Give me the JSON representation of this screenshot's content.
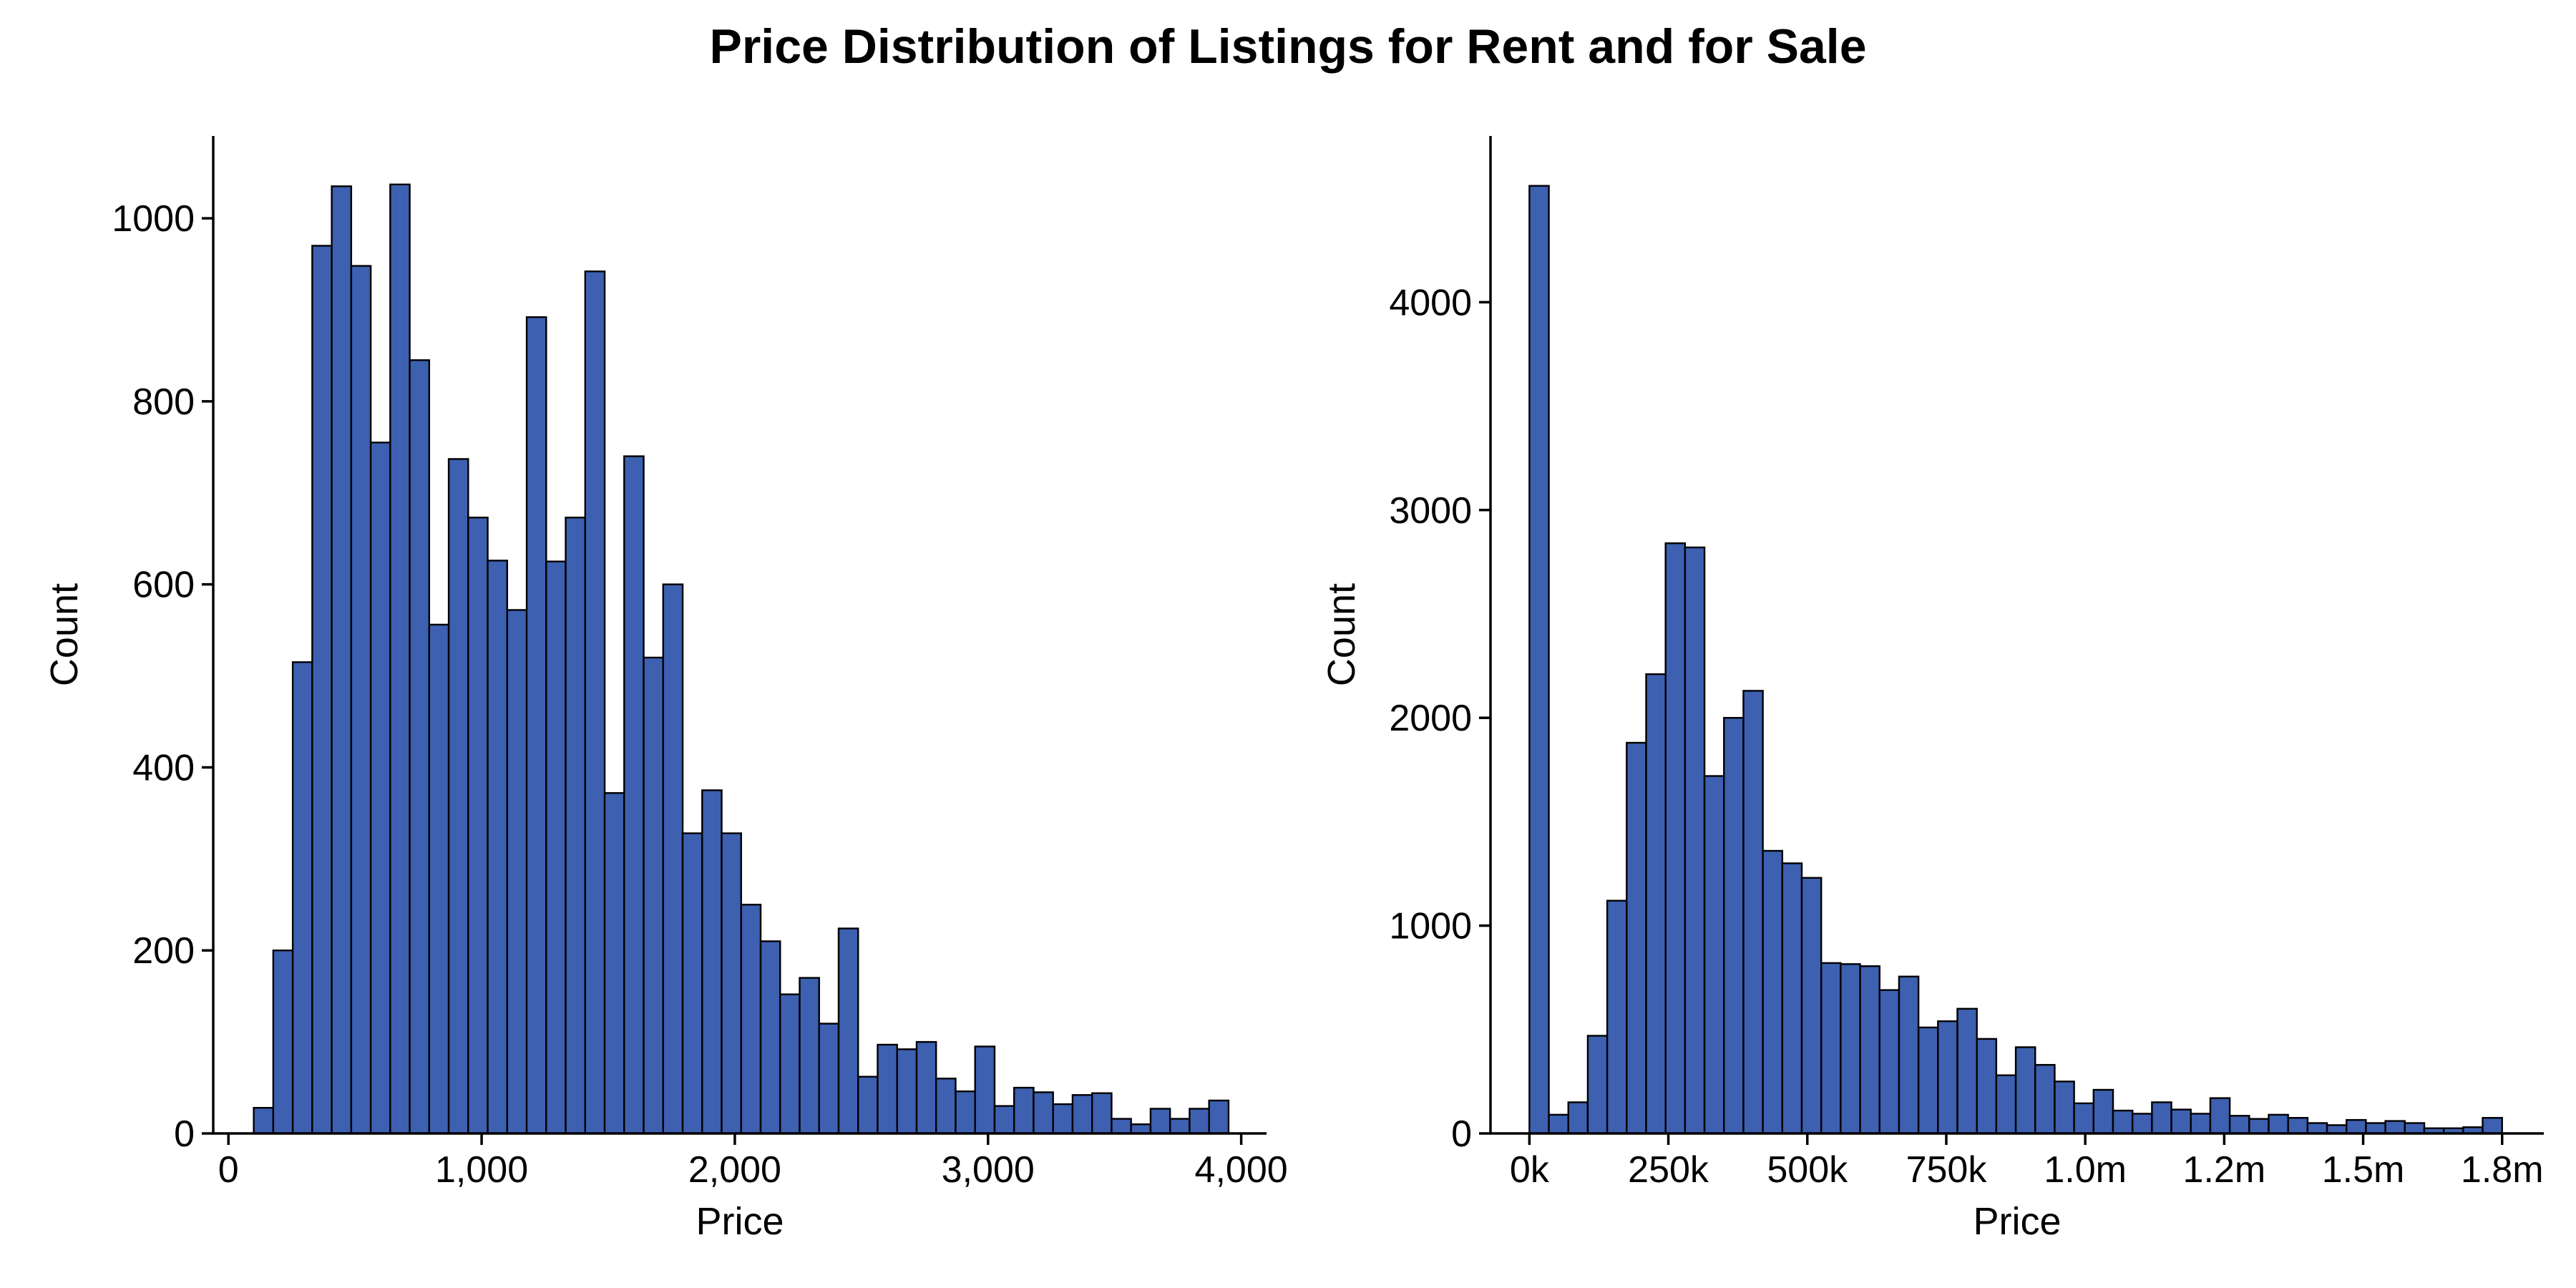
{
  "figure": {
    "title": "Price Distribution of Listings for Rent and for Sale",
    "bar_color": "#3d60b0",
    "edge_color": "#000000"
  },
  "chart_data": [
    {
      "type": "bar",
      "subtype": "histogram",
      "title": "",
      "xlabel": "Price",
      "ylabel": "Count",
      "xlim": [
        -60,
        4100
      ],
      "ylim": [
        0,
        1090
      ],
      "x_ticks": [
        0,
        1000,
        2000,
        3000,
        4000
      ],
      "x_tick_labels": [
        "0",
        "1,000",
        "2,000",
        "3,000",
        "4,000"
      ],
      "y_ticks": [
        0,
        200,
        400,
        600,
        800,
        1000
      ],
      "y_tick_labels": [
        "0",
        "200",
        "400",
        "600",
        "800",
        "1000"
      ],
      "bin_start": 100,
      "bin_width": 77,
      "values": [
        28,
        200,
        515,
        970,
        1035,
        948,
        755,
        1037,
        845,
        556,
        737,
        673,
        626,
        572,
        892,
        625,
        673,
        942,
        372,
        740,
        520,
        600,
        328,
        375,
        328,
        250,
        210,
        152,
        170,
        120,
        224,
        62,
        97,
        92,
        100,
        60,
        46,
        95,
        30,
        50,
        45,
        32,
        42,
        44,
        16,
        10,
        27,
        16,
        27,
        36
      ],
      "grid": false,
      "legend": "none"
    },
    {
      "type": "bar",
      "subtype": "histogram",
      "title": "",
      "xlabel": "Price",
      "ylabel": "Count",
      "xlim": [
        -70000,
        1825000
      ],
      "ylim": [
        0,
        4800
      ],
      "x_ticks": [
        0,
        250000,
        500000,
        750000,
        1000000,
        1250000,
        1500000,
        1750000
      ],
      "x_tick_labels": [
        "0k",
        "250k",
        "500k",
        "750k",
        "1.0m",
        "1.2m",
        "1.5m",
        "1.8m"
      ],
      "y_ticks": [
        0,
        1000,
        2000,
        3000,
        4000
      ],
      "y_tick_labels": [
        "0",
        "1000",
        "2000",
        "3000",
        "4000"
      ],
      "bin_start": 0,
      "bin_width": 35000,
      "values": [
        4560,
        90,
        150,
        470,
        1120,
        1880,
        2210,
        2840,
        2820,
        1720,
        2000,
        2130,
        1360,
        1300,
        1230,
        820,
        815,
        805,
        690,
        755,
        510,
        540,
        600,
        455,
        280,
        415,
        330,
        250,
        145,
        210,
        110,
        95,
        150,
        115,
        95,
        170,
        85,
        70,
        90,
        75,
        50,
        40,
        65,
        50,
        60,
        50,
        25,
        25,
        30,
        75
      ],
      "grid": false,
      "legend": "none"
    }
  ]
}
